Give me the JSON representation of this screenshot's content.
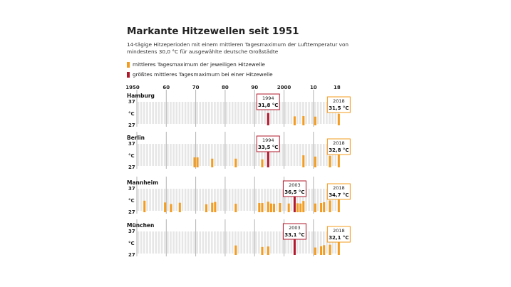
{
  "title": "Markante Hitzewellen seit 1951",
  "subtitle": "14-tägige Hitzeperioden mit einem mittleren Tagesmaximum der Lufttemperatur von mindestens 30,0 °C für ausgewählte deutsche Großstädte",
  "legend": [
    {
      "label": "mittleres Tagesmaximum der jeweiligen Hitzewelle",
      "color": "#f39c1f"
    },
    {
      "label": "größtes mittleres Tagesmaximum bei einer Hitzewelle",
      "color": "#b2182b"
    }
  ],
  "colors": {
    "bar": "#f39c1f",
    "max": "#b2182b",
    "grid_band": "#e6e6e6",
    "decade_line": "#b3b3b3"
  },
  "chart_data": {
    "type": "bar",
    "xlabel": "",
    "ylabel": "°C",
    "x_ticks": [
      {
        "year": 1950,
        "label": "1950"
      },
      {
        "year": 1960,
        "label": "60"
      },
      {
        "year": 1970,
        "label": "70"
      },
      {
        "year": 1980,
        "label": "80"
      },
      {
        "year": 1990,
        "label": "90"
      },
      {
        "year": 2000,
        "label": "2000"
      },
      {
        "year": 2010,
        "label": "10"
      },
      {
        "year": 2018,
        "label": "18"
      }
    ],
    "xlim": [
      1950,
      2019
    ],
    "ylim": [
      27,
      37
    ],
    "y_tick_labels": [
      "37",
      "°C",
      "27"
    ],
    "panels": [
      {
        "city": "Hamburg",
        "bars": [
          [
            2003,
            30.5
          ],
          [
            2006,
            30.6
          ],
          [
            2010,
            30.4
          ],
          [
            2018,
            31.5
          ]
        ],
        "max": {
          "year": 1994,
          "value": 31.8,
          "label_year": "1994",
          "label_value": "31,8 °C"
        },
        "last": {
          "year": 2018,
          "value": 31.5,
          "label_year": "2018",
          "label_value": "31,5 °C"
        }
      },
      {
        "city": "Berlin",
        "bars": [
          [
            1969,
            30.9
          ],
          [
            1970,
            30.9
          ],
          [
            1975,
            30.4
          ],
          [
            1983,
            30.4
          ],
          [
            1992,
            30.1
          ],
          [
            2006,
            31.7
          ],
          [
            2010,
            31.2
          ],
          [
            2015,
            31.5
          ],
          [
            2018,
            32.8
          ]
        ],
        "max": {
          "year": 1994,
          "value": 33.5,
          "label_year": "1994",
          "label_value": "33,5 °C"
        },
        "last": {
          "year": 2018,
          "value": 32.8,
          "label_year": "2018",
          "label_value": "32,8 °C"
        }
      },
      {
        "city": "Mannheim",
        "bars": [
          [
            1952,
            31.5
          ],
          [
            1959,
            30.8
          ],
          [
            1961,
            30.2
          ],
          [
            1964,
            30.7
          ],
          [
            1973,
            30.1
          ],
          [
            1975,
            30.7
          ],
          [
            1976,
            31.0
          ],
          [
            1983,
            30.3
          ],
          [
            1991,
            30.6
          ],
          [
            1992,
            30.6
          ],
          [
            1994,
            31.1
          ],
          [
            1995,
            30.4
          ],
          [
            1996,
            30.3
          ],
          [
            1998,
            30.6
          ],
          [
            2001,
            30.4
          ],
          [
            2004,
            30.5
          ],
          [
            2005,
            30.4
          ],
          [
            2006,
            31.4
          ],
          [
            2010,
            30.4
          ],
          [
            2012,
            30.6
          ],
          [
            2013,
            30.9
          ],
          [
            2015,
            31.6
          ],
          [
            2018,
            34.7
          ]
        ],
        "max": {
          "year": 2003,
          "value": 36.5,
          "label_year": "2003",
          "label_value": "36,5 °C"
        },
        "last": {
          "year": 2018,
          "value": 34.7,
          "label_year": "2018",
          "label_value": "34,7 °C"
        }
      },
      {
        "city": "München",
        "bars": [
          [
            1983,
            30.7
          ],
          [
            1992,
            30.1
          ],
          [
            1994,
            30.3
          ],
          [
            2010,
            29.9
          ],
          [
            2012,
            30.4
          ],
          [
            2013,
            30.8
          ],
          [
            2015,
            31.0
          ],
          [
            2018,
            32.1
          ]
        ],
        "max": {
          "year": 2003,
          "value": 33.1,
          "label_year": "2003",
          "label_value": "33,1 °C"
        },
        "last": {
          "year": 2018,
          "value": 32.1,
          "label_year": "2018",
          "label_value": "32,1 °C"
        }
      }
    ]
  }
}
